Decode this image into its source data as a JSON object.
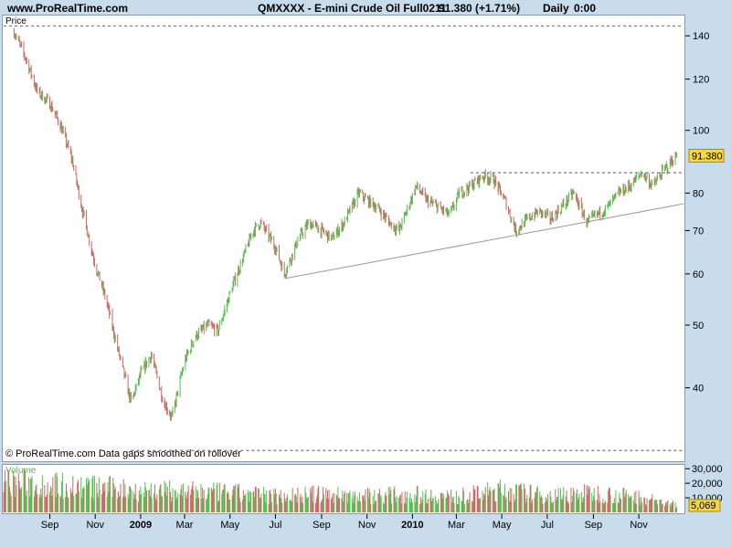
{
  "header": {
    "site": "www.ProRealTime.com",
    "instrument": "QMXXXX - E-mini Crude Oil Full0211",
    "quote": "91.380 (+1.71%)",
    "period": "Daily",
    "time": "0:00"
  },
  "price_panel": {
    "label": "Price",
    "note": "© ProRealTime.com  Data gaps smoothed on rollover"
  },
  "volume_panel": {
    "label": "Volume"
  },
  "colors": {
    "up": "#4cc34c",
    "down": "#d46464",
    "tag_bg": "#f5d742",
    "dotted": "#777777",
    "trend": "#999999"
  },
  "chart_data": [
    {
      "type": "line",
      "title": "QMXXXX - E-mini Crude Oil Full0211",
      "ylabel": "Price",
      "scale": "log",
      "ylim": [
        31,
        150
      ],
      "y_ticks": [
        40,
        50,
        60,
        70,
        80,
        100,
        120,
        140
      ],
      "x_tick_labels": [
        "Sep",
        "Nov",
        "2009",
        "Mar",
        "May",
        "Jul",
        "Sep",
        "Nov",
        "2010",
        "Mar",
        "May",
        "Jul",
        "Sep",
        "Nov"
      ],
      "x_tick_bold": [
        "2009",
        "2010"
      ],
      "last_price": "91.380",
      "series": [
        {
          "name": "Close",
          "x": [
            "2008-07-15",
            "2008-08-01",
            "2008-08-15",
            "2008-09-01",
            "2008-09-15",
            "2008-10-01",
            "2008-10-15",
            "2008-11-01",
            "2008-11-15",
            "2008-12-01",
            "2008-12-19",
            "2009-01-01",
            "2009-01-15",
            "2009-02-01",
            "2009-02-12",
            "2009-03-01",
            "2009-03-15",
            "2009-04-01",
            "2009-04-15",
            "2009-05-01",
            "2009-05-15",
            "2009-06-01",
            "2009-06-11",
            "2009-07-01",
            "2009-07-13",
            "2009-08-01",
            "2009-08-15",
            "2009-09-01",
            "2009-09-15",
            "2009-10-01",
            "2009-10-21",
            "2009-11-01",
            "2009-11-15",
            "2009-12-01",
            "2009-12-14",
            "2010-01-06",
            "2010-01-20",
            "2010-02-05",
            "2010-02-20",
            "2010-03-05",
            "2010-03-20",
            "2010-04-06",
            "2010-04-20",
            "2010-05-05",
            "2010-05-20",
            "2010-06-05",
            "2010-06-20",
            "2010-07-06",
            "2010-07-20",
            "2010-08-05",
            "2010-08-24",
            "2010-09-05",
            "2010-09-20",
            "2010-10-05",
            "2010-10-20",
            "2010-11-05",
            "2010-11-20",
            "2010-12-05",
            "2010-12-22"
          ],
          "values": [
            142,
            128,
            115,
            110,
            102,
            90,
            75,
            62,
            55,
            46,
            38,
            42,
            45,
            38,
            36,
            44,
            48,
            50,
            49,
            56,
            62,
            70,
            72,
            66,
            60,
            68,
            72,
            70,
            68,
            72,
            80,
            78,
            76,
            72,
            70,
            82,
            78,
            76,
            74,
            80,
            82,
            85,
            84,
            78,
            70,
            73,
            75,
            73,
            76,
            80,
            72,
            74,
            76,
            80,
            82,
            86,
            82,
            87,
            91.38
          ]
        },
        {
          "name": "Volume",
          "x": [
            "2008-07",
            "2008-09",
            "2008-11",
            "2009-01",
            "2009-03",
            "2009-05",
            "2009-07",
            "2009-09",
            "2009-11",
            "2010-01",
            "2010-03",
            "2010-05",
            "2010-07",
            "2010-09",
            "2010-11",
            "2010-12-22"
          ],
          "values": [
            22000,
            20000,
            18000,
            16000,
            15000,
            14000,
            12000,
            13000,
            12000,
            13000,
            11000,
            16000,
            12000,
            14000,
            11000,
            5069
          ]
        }
      ],
      "annotations": [
        {
          "type": "horizontal_dotted",
          "y": 145,
          "from": "2008-07-01",
          "to": "2010-12-31"
        },
        {
          "type": "horizontal_dotted",
          "y": 32,
          "from": "2008-12-19",
          "to": "2010-12-31"
        },
        {
          "type": "horizontal_dotted",
          "y": 86,
          "from": "2010-03-20",
          "to": "2010-12-31"
        },
        {
          "type": "trendline",
          "from": {
            "x": "2009-07-13",
            "y": 59
          },
          "to": {
            "x": "2010-12-31",
            "y": 77
          }
        }
      ]
    },
    {
      "type": "bar",
      "title": "Volume",
      "ylim": [
        0,
        32000
      ],
      "y_ticks": [
        10000,
        20000,
        30000
      ],
      "y_tick_labels": [
        "10,000",
        "20,000",
        "30,000"
      ],
      "last_volume": "5,069"
    }
  ]
}
